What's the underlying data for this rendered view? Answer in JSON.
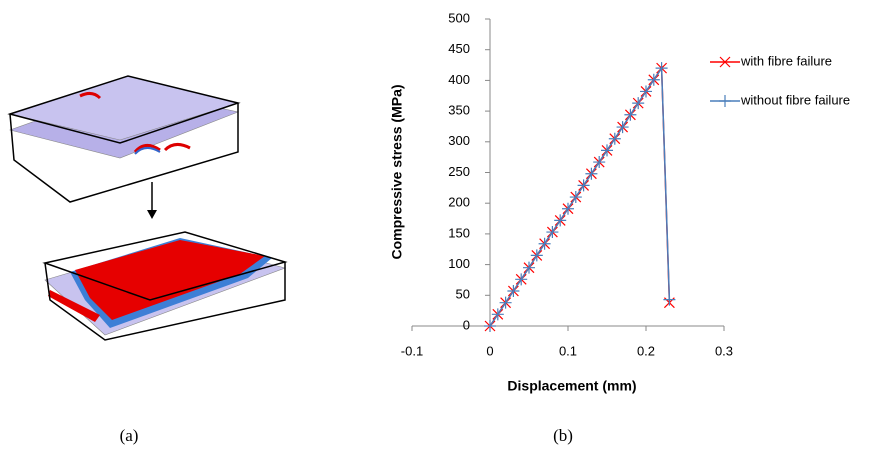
{
  "panel_labels": [
    "(a)",
    "(b)"
  ],
  "chart_data": {
    "type": "line",
    "x_label": "Displacement (mm)",
    "y_label": "Compressive stress (MPa)",
    "x": [
      0,
      0.01,
      0.02,
      0.03,
      0.04,
      0.05,
      0.06,
      0.07,
      0.08,
      0.09,
      0.1,
      0.11,
      0.12,
      0.13,
      0.14,
      0.15,
      0.16,
      0.17,
      0.18,
      0.19,
      0.2,
      0.21,
      0.22,
      0.23
    ],
    "series": [
      {
        "name": "with fibre failure",
        "color": "#ff0000",
        "marker": "x",
        "values": [
          0,
          19,
          38,
          57,
          76,
          95,
          115,
          134,
          153,
          172,
          191,
          210,
          229,
          248,
          267,
          286,
          305,
          324,
          344,
          363,
          382,
          401,
          420,
          38
        ]
      },
      {
        "name": "without fibre failure",
        "color": "#4a7ebb",
        "marker": "+",
        "values": [
          0,
          19,
          38,
          57,
          76,
          95,
          115,
          134,
          153,
          172,
          191,
          210,
          229,
          248,
          267,
          286,
          305,
          324,
          344,
          363,
          382,
          401,
          420,
          43
        ]
      }
    ],
    "xlim": [
      -0.1,
      0.3
    ],
    "xticks": [
      -0.1,
      0,
      0.1,
      0.2,
      0.3
    ],
    "ylim": [
      0,
      500
    ],
    "yticks": [
      0,
      50,
      100,
      150,
      200,
      250,
      300,
      350,
      400,
      450,
      500
    ],
    "legend": "right"
  }
}
